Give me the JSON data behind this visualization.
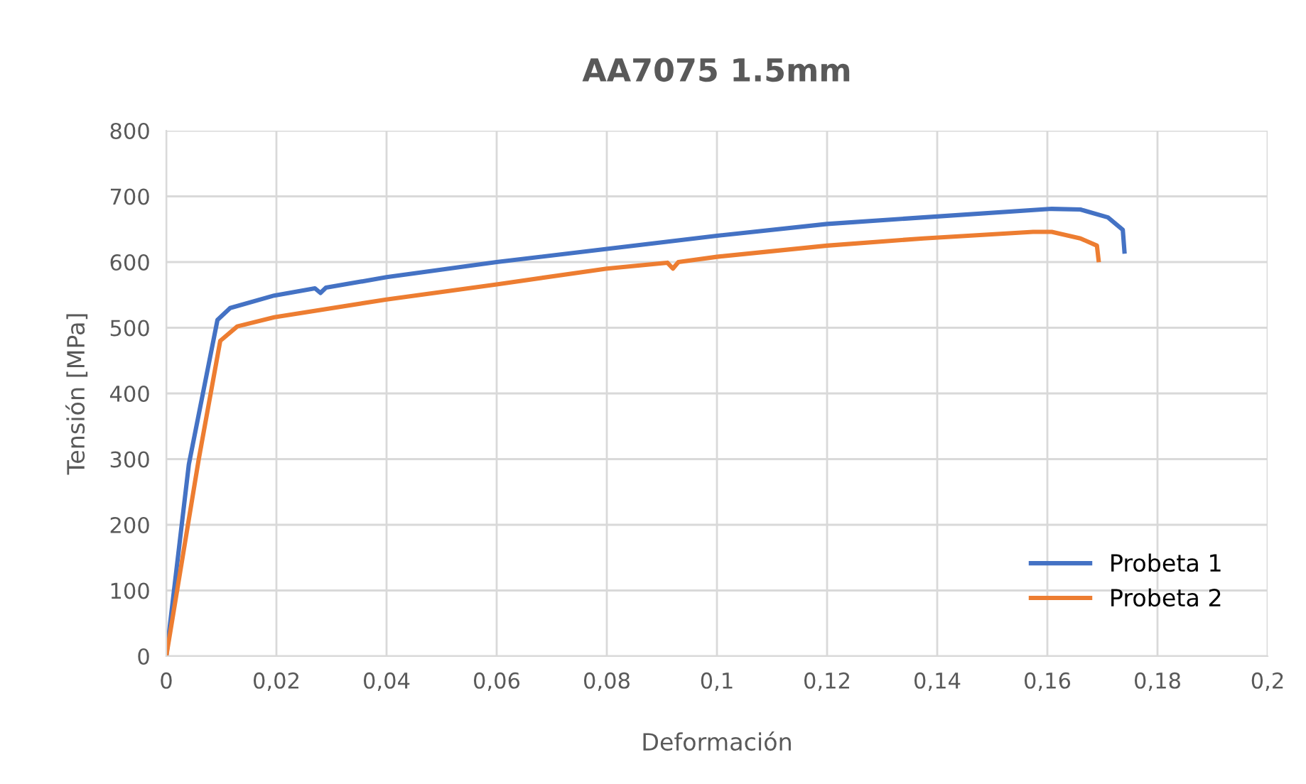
{
  "chart_data": {
    "type": "line",
    "title": "AA7075 1.5mm",
    "xlabel": "Deformación",
    "ylabel": "Tensión [MPa]",
    "xlim": [
      0,
      0.2
    ],
    "ylim": [
      0,
      800
    ],
    "xticks": [
      0,
      {
        "value": 0.02,
        "label": "0,02"
      },
      {
        "value": 0.04,
        "label": "0,04"
      },
      {
        "value": 0.06,
        "label": "0,06"
      },
      {
        "value": 0.08,
        "label": "0,08"
      },
      {
        "value": 0.1,
        "label": "0,1"
      },
      {
        "value": 0.12,
        "label": "0,12"
      },
      {
        "value": 0.14,
        "label": "0,14"
      },
      {
        "value": 0.16,
        "label": "0,16"
      },
      {
        "value": 0.18,
        "label": "0,18"
      },
      {
        "value": 0.2,
        "label": "0,2"
      }
    ],
    "yticks": [
      0,
      100,
      200,
      300,
      400,
      500,
      600,
      700,
      800
    ],
    "grid": true,
    "legend": "bottom right",
    "marker": "none",
    "line_style": "solid",
    "series": [
      {
        "name": "Probeta 1",
        "color": "#4472c4",
        "x": [
          0,
          0.0041,
          0.0093,
          0.0116,
          0.0196,
          0.027,
          0.028,
          0.029,
          0.04,
          0.06,
          0.08,
          0.1,
          0.12,
          0.1375,
          0.1608,
          0.166,
          0.171,
          0.1737,
          0.174
        ],
        "values": [
          0,
          292,
          512,
          530,
          549,
          560,
          553,
          561,
          577,
          600,
          620,
          640,
          658,
          668,
          681,
          680,
          668,
          649,
          616
        ]
      },
      {
        "name": "Probeta 2",
        "color": "#ed7d31",
        "x": [
          0,
          0.0059,
          0.0098,
          0.0129,
          0.0196,
          0.04,
          0.06,
          0.08,
          0.091,
          0.092,
          0.093,
          0.1,
          0.12,
          0.1375,
          0.1574,
          0.1608,
          0.166,
          0.169,
          0.1693
        ],
        "values": [
          0,
          300,
          480,
          502,
          516,
          543,
          566,
          590,
          599,
          590,
          600,
          608,
          625,
          636,
          646,
          646,
          636,
          625,
          603
        ]
      }
    ]
  }
}
